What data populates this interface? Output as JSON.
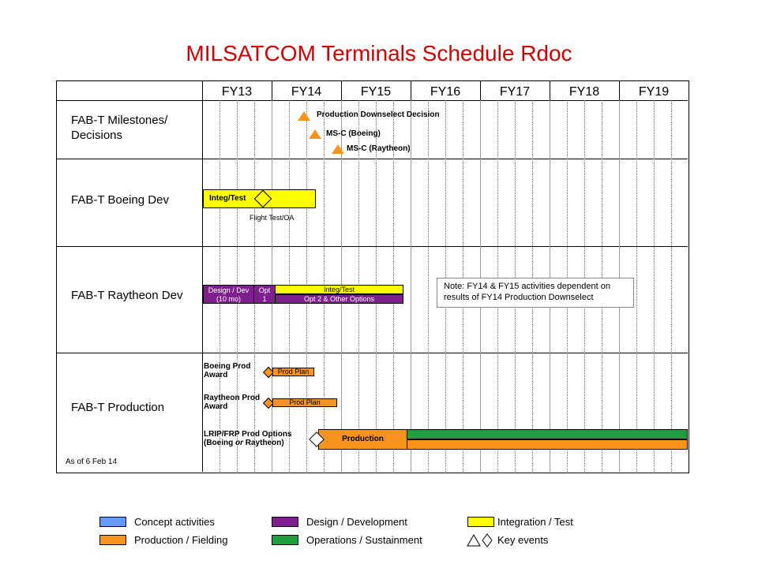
{
  "title": "MILSATCOM Terminals Schedule Rdoc",
  "fiscal_years": [
    "FY13",
    "FY14",
    "FY15",
    "FY16",
    "FY17",
    "FY18",
    "FY19"
  ],
  "rows": {
    "milestones": "FAB-T Milestones/ Decisions",
    "boeing_dev": "FAB-T Boeing Dev",
    "raytheon_dev": "FAB-T Raytheon Dev",
    "production": "FAB-T Production"
  },
  "milestones": {
    "downselect": "Production Downselect Decision",
    "msc_boeing": "MS-C (Boeing)",
    "msc_raytheon": "MS-C (Raytheon)"
  },
  "boeing": {
    "integ_test": "Integ/Test",
    "flight_test": "Flight Test/OA"
  },
  "raytheon": {
    "design_dev": "Design / Dev",
    "design_dev_dur": "(10 mo)",
    "opt": "Opt",
    "opt_num": "1",
    "integ_test": "Integ/Test",
    "opt2": "Opt 2 & Other Options"
  },
  "note": "Note: FY14 & FY15 activities dependent on results of FY14 Production Downselect",
  "production": {
    "boeing_award": "Boeing Prod Award",
    "boeing_plan": "Prod Plan",
    "raytheon_award": "Raytheon Prod Award",
    "raytheon_plan": "Prod Plan",
    "lrip_label": "LRIP/FRP Prod Options",
    "lrip_sub_a": "(Boeing ",
    "lrip_sub_or": "or",
    "lrip_sub_b": " Raytheon)",
    "production_bar": "Production"
  },
  "as_of": "As of 6 Feb 14",
  "legend": {
    "concept": "Concept activities",
    "production": "Production / Fielding",
    "design": "Design / Development",
    "ops": "Operations / Sustainment",
    "integ": "Integration / Test",
    "key": "Key events"
  },
  "colors": {
    "title": "#cc0000",
    "concept": "#6699ff",
    "production": "#f7941d",
    "design": "#7f1f8f",
    "ops": "#1e9e3c",
    "integ": "#ffff00"
  }
}
